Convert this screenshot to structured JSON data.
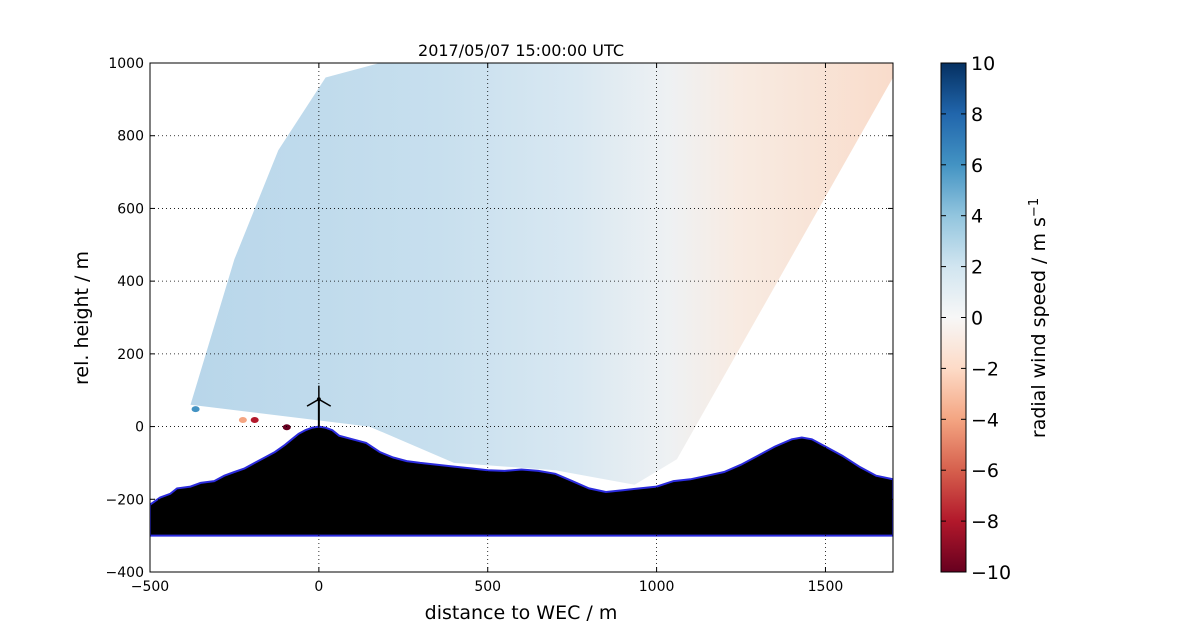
{
  "chart_data": {
    "type": "heatmap",
    "title": "2017/05/07 15:00:00 UTC",
    "xlabel": "distance to WEC / m",
    "ylabel": "rel. height / m",
    "xlim": [
      -500,
      1700
    ],
    "ylim": [
      -400,
      1000
    ],
    "x_ticks": [
      -500,
      0,
      500,
      1000,
      1500
    ],
    "y_ticks": [
      -400,
      -200,
      0,
      200,
      400,
      600,
      800,
      1000
    ],
    "grid": true,
    "colormap": "RdBu",
    "colorbar": {
      "label": "radial wind speed / m s",
      "label_superscript": "−1",
      "range": [
        -10,
        10
      ],
      "ticks": [
        -10,
        -8,
        -6,
        -4,
        -2,
        0,
        2,
        4,
        6,
        8,
        10
      ],
      "position": "right"
    },
    "scan_sector": {
      "description_values_m": true,
      "left_edge": [
        [
          -380,
          60
        ],
        [
          -250,
          460
        ],
        [
          -120,
          760
        ],
        [
          20,
          960
        ],
        [
          180,
          1000
        ]
      ],
      "top_edge_x_end": 1700,
      "right_edge": [
        [
          1700,
          960
        ],
        [
          1060,
          -90
        ]
      ],
      "bottom_edge": [
        [
          1060,
          -90
        ],
        [
          935,
          -160
        ],
        [
          700,
          -120
        ],
        [
          400,
          -100
        ],
        [
          150,
          0
        ],
        [
          -380,
          60
        ]
      ]
    },
    "wind_field_samples": [
      {
        "x": -300,
        "y": 150,
        "v": 3.0
      },
      {
        "x": 200,
        "y": 400,
        "v": 2.2
      },
      {
        "x": 600,
        "y": 600,
        "v": 1.6
      },
      {
        "x": 900,
        "y": 300,
        "v": 0.8
      },
      {
        "x": 1200,
        "y": 500,
        "v": -0.6
      },
      {
        "x": 1550,
        "y": 950,
        "v": -1.0
      }
    ],
    "terrain_profile": [
      [
        -500,
        -215
      ],
      [
        -470,
        -195
      ],
      [
        -440,
        -185
      ],
      [
        -420,
        -170
      ],
      [
        -380,
        -165
      ],
      [
        -350,
        -155
      ],
      [
        -310,
        -150
      ],
      [
        -280,
        -135
      ],
      [
        -250,
        -125
      ],
      [
        -220,
        -115
      ],
      [
        -190,
        -100
      ],
      [
        -160,
        -85
      ],
      [
        -130,
        -70
      ],
      [
        -100,
        -50
      ],
      [
        -80,
        -35
      ],
      [
        -60,
        -20
      ],
      [
        -40,
        -10
      ],
      [
        -20,
        -3
      ],
      [
        0,
        0
      ],
      [
        20,
        -3
      ],
      [
        40,
        -10
      ],
      [
        60,
        -25
      ],
      [
        100,
        -35
      ],
      [
        140,
        -45
      ],
      [
        180,
        -70
      ],
      [
        220,
        -85
      ],
      [
        260,
        -95
      ],
      [
        300,
        -100
      ],
      [
        350,
        -105
      ],
      [
        400,
        -110
      ],
      [
        450,
        -115
      ],
      [
        500,
        -120
      ],
      [
        550,
        -122
      ],
      [
        600,
        -118
      ],
      [
        650,
        -122
      ],
      [
        700,
        -130
      ],
      [
        750,
        -150
      ],
      [
        800,
        -170
      ],
      [
        850,
        -180
      ],
      [
        900,
        -175
      ],
      [
        950,
        -170
      ],
      [
        1000,
        -165
      ],
      [
        1050,
        -150
      ],
      [
        1100,
        -145
      ],
      [
        1150,
        -135
      ],
      [
        1200,
        -125
      ],
      [
        1250,
        -105
      ],
      [
        1300,
        -80
      ],
      [
        1350,
        -55
      ],
      [
        1400,
        -35
      ],
      [
        1430,
        -30
      ],
      [
        1460,
        -35
      ],
      [
        1500,
        -55
      ],
      [
        1550,
        -80
      ],
      [
        1600,
        -110
      ],
      [
        1650,
        -135
      ],
      [
        1700,
        -145
      ]
    ],
    "terrain_base": -300,
    "wec": {
      "x": 0,
      "hub_height": 75,
      "rotor_radius": 45
    },
    "outlier_points": [
      {
        "x": -365,
        "y": 48,
        "v": 5.0
      },
      {
        "x": -225,
        "y": 18,
        "v": -5.0
      },
      {
        "x": -190,
        "y": 18,
        "v": -8.0
      },
      {
        "x": -95,
        "y": -2,
        "v": -10.0
      }
    ]
  }
}
